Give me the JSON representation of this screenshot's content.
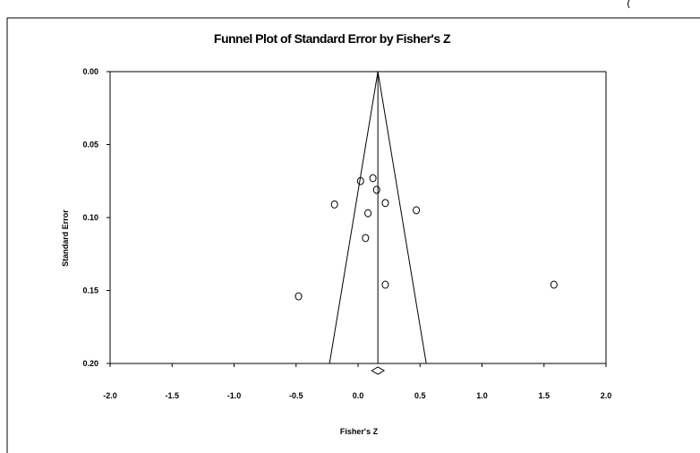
{
  "chart_data": {
    "type": "scatter",
    "title": "Funnel Plot of Standard Error by Fisher's Z",
    "xlabel": "Fisher's Z",
    "ylabel": "Standard Error",
    "xlim": [
      -2.0,
      2.0
    ],
    "ylim": [
      0.0,
      0.2
    ],
    "y_inverted": true,
    "x_ticks": [
      "-2.0",
      "-1.5",
      "-1.0",
      "-0.5",
      "0.0",
      "0.5",
      "1.0",
      "1.5",
      "2.0"
    ],
    "y_ticks": [
      "0.00",
      "0.05",
      "0.10",
      "0.15",
      "0.20"
    ],
    "grid": false,
    "points": [
      {
        "x": 0.12,
        "y": 0.073
      },
      {
        "x": 0.02,
        "y": 0.075
      },
      {
        "x": 0.15,
        "y": 0.081
      },
      {
        "x": -0.19,
        "y": 0.091
      },
      {
        "x": 0.22,
        "y": 0.09
      },
      {
        "x": 0.08,
        "y": 0.097
      },
      {
        "x": 0.47,
        "y": 0.095
      },
      {
        "x": 0.06,
        "y": 0.114
      },
      {
        "x": -0.48,
        "y": 0.154
      },
      {
        "x": 0.22,
        "y": 0.146
      },
      {
        "x": 1.58,
        "y": 0.146
      }
    ],
    "summary_effect": 0.16,
    "summary_diamond_halfwidth": 0.05,
    "funnel_bottom_left": -0.23,
    "funnel_bottom_right": 0.55
  }
}
